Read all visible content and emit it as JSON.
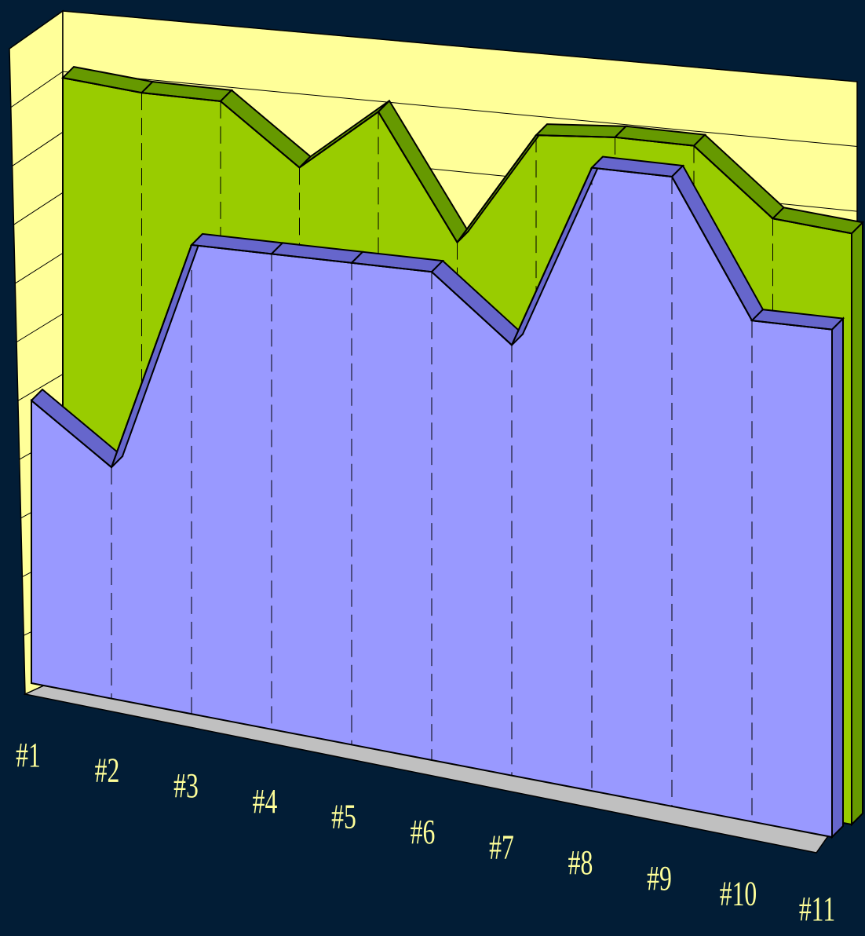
{
  "chart_data": {
    "type": "area3d",
    "categories": [
      "#1",
      "#2",
      "#3",
      "#4",
      "#5",
      "#6",
      "#7",
      "#8",
      "#9",
      "#10",
      "#11"
    ],
    "series": [
      {
        "color": "#99cc00",
        "values": [
          9.3,
          9.3,
          9.4,
          8.6,
          9.7,
          7.9,
          9.8,
          10.0,
          10.1,
          9.2,
          9.2
        ]
      },
      {
        "color": "#9999ff",
        "values": [
          4.4,
          3.6,
          7.3,
          7.4,
          7.5,
          7.6,
          6.7,
          9.7,
          9.8,
          7.8,
          7.9
        ]
      }
    ],
    "ylim": [
      0,
      11
    ],
    "yticks": [
      0,
      1,
      2,
      3,
      4,
      5,
      6,
      7,
      8,
      9,
      10,
      11
    ],
    "grid": true
  }
}
